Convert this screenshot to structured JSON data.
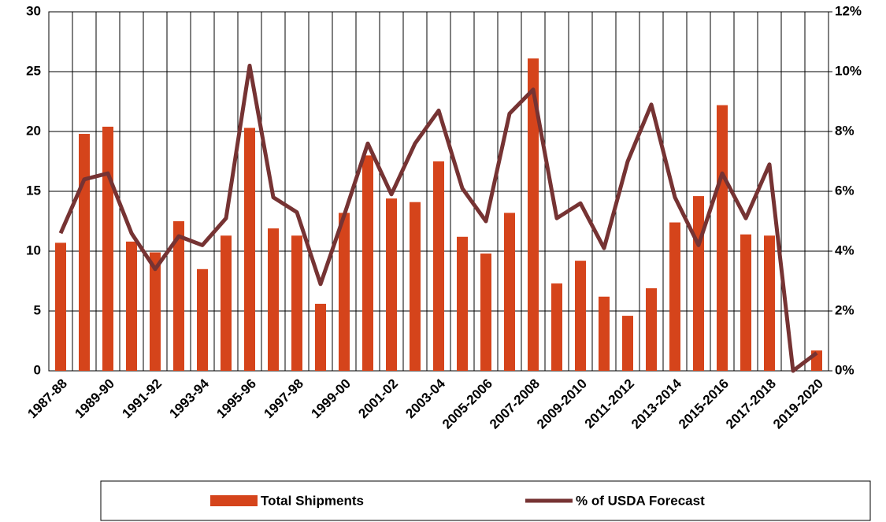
{
  "chart_data": {
    "type": "bar",
    "categories": [
      "1987-88",
      null,
      "1989-90",
      null,
      "1991-92",
      null,
      "1993-94",
      null,
      "1995-96",
      null,
      "1997-98",
      null,
      "1999-00",
      null,
      "2001-02",
      null,
      "2003-04",
      null,
      "2005-2006",
      null,
      "2007-2008",
      null,
      "2009-2010",
      null,
      "2011-2012",
      null,
      "2013-2014",
      null,
      "2015-2016",
      null,
      "2017-2018",
      null,
      "2019-2020"
    ],
    "series": [
      {
        "name": "Total Shipments",
        "type": "bar",
        "color": "#d5441b",
        "values": [
          10.7,
          19.8,
          20.4,
          10.8,
          9.9,
          12.5,
          8.5,
          11.3,
          20.3,
          11.9,
          11.3,
          5.6,
          13.2,
          18.0,
          14.4,
          14.1,
          17.5,
          11.2,
          9.8,
          13.2,
          26.1,
          7.3,
          9.2,
          6.2,
          4.6,
          6.9,
          12.4,
          14.6,
          22.2,
          11.4,
          11.3,
          0,
          1.7
        ]
      },
      {
        "name": "% of USDA Forecast",
        "type": "line",
        "axis": "y2",
        "color": "#763333",
        "values": [
          4.6,
          6.4,
          6.6,
          4.6,
          3.4,
          4.5,
          4.2,
          5.1,
          10.2,
          5.8,
          5.3,
          2.9,
          5.2,
          7.6,
          5.9,
          7.6,
          8.7,
          6.1,
          5.0,
          8.6,
          9.4,
          5.1,
          5.6,
          4.1,
          7.0,
          8.9,
          5.8,
          4.2,
          6.6,
          5.1,
          6.9,
          0.0,
          0.6
        ]
      }
    ],
    "ylim": [
      0,
      30
    ],
    "yticks": [
      0,
      5,
      10,
      15,
      20,
      25,
      30
    ],
    "y2lim": [
      0,
      12
    ],
    "y2ticks": [
      {
        "value": 0,
        "label": "0%"
      },
      {
        "value": 2,
        "label": "2%"
      },
      {
        "value": 4,
        "label": "4%"
      },
      {
        "value": 6,
        "label": "6%"
      },
      {
        "value": 8,
        "label": "8%"
      },
      {
        "value": 10,
        "label": "10%"
      },
      {
        "value": 12,
        "label": "12%"
      }
    ],
    "grid": true,
    "legend": "bottom"
  }
}
